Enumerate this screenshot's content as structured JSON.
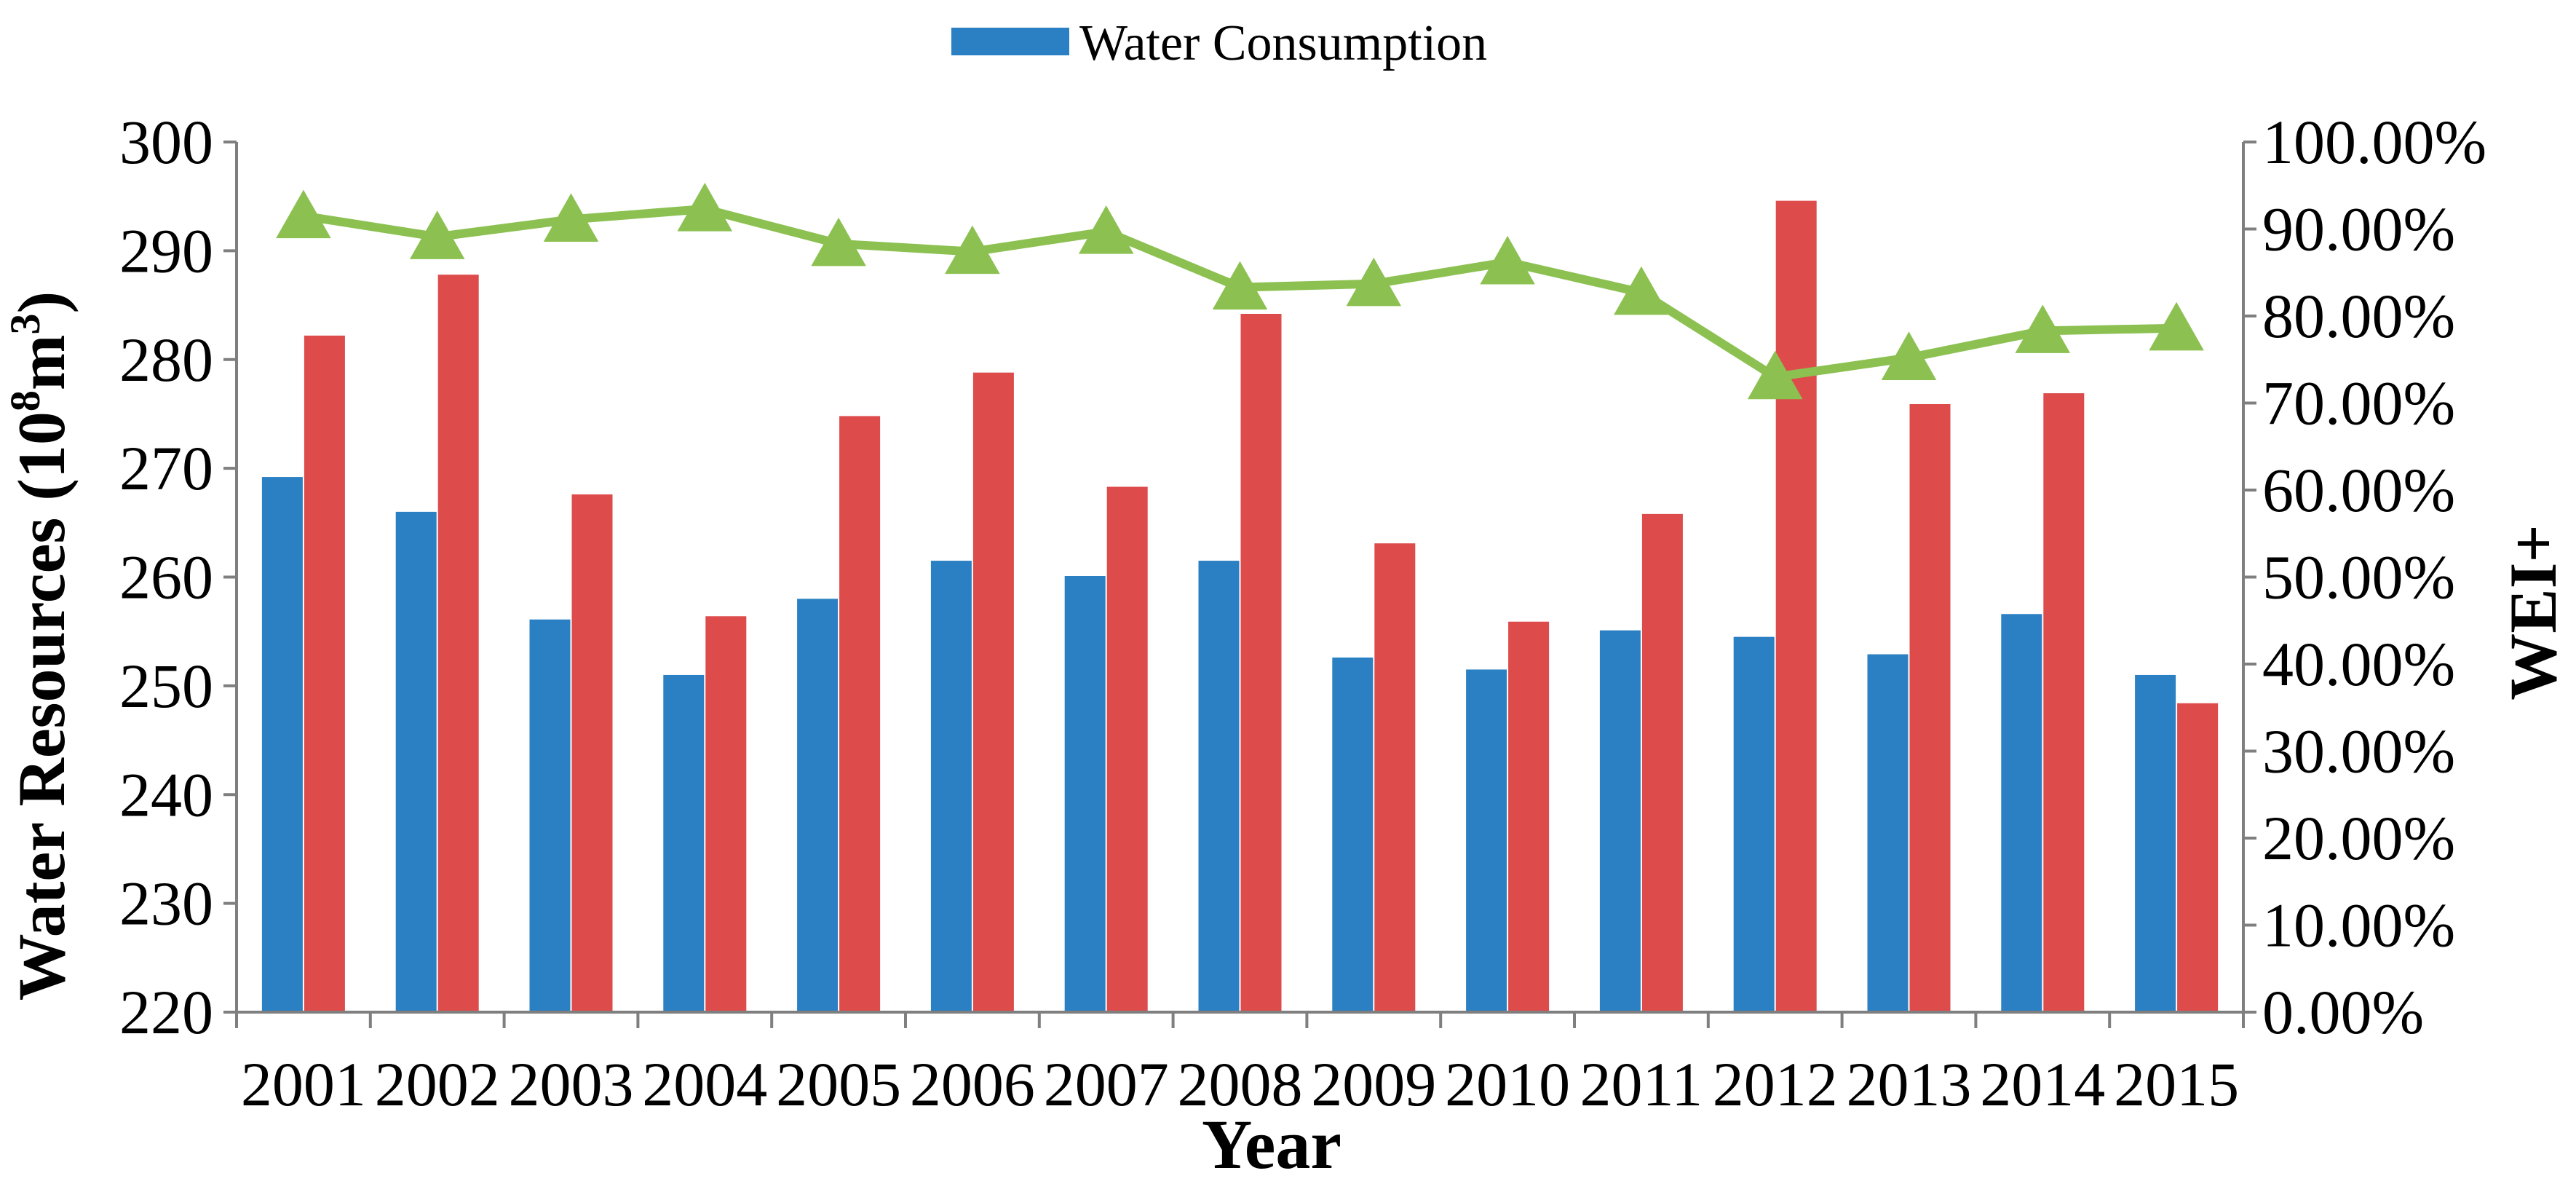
{
  "chart_data": {
    "type": "bar+line",
    "title": "",
    "legend": {
      "position": "top-center",
      "entries": [
        {
          "name": "Water Consumption",
          "color": "#2a80c2"
        }
      ]
    },
    "xlabel": "Year",
    "ylabel_left": {
      "main": "Water Resources (10",
      "sup1": "8",
      "mid": "m",
      "sup2": "3",
      "end": ")"
    },
    "ylabel_right": "WEI+",
    "categories": [
      "2001",
      "2002",
      "2003",
      "2004",
      "2005",
      "2006",
      "2007",
      "2008",
      "2009",
      "2010",
      "2011",
      "2012",
      "2013",
      "2014",
      "2015"
    ],
    "y_left": {
      "min": 220,
      "max": 300,
      "step": 10,
      "ticks": [
        "220",
        "230",
        "240",
        "250",
        "260",
        "270",
        "280",
        "290",
        "300"
      ]
    },
    "y_right": {
      "min": 0,
      "max": 1,
      "step": 0.1,
      "ticks": [
        "0.00%",
        "10.00%",
        "20.00%",
        "30.00%",
        "40.00%",
        "50.00%",
        "60.00%",
        "70.00%",
        "80.00%",
        "90.00%",
        "100.00%"
      ]
    },
    "series": [
      {
        "name": "Water Consumption",
        "type": "bar",
        "axis": "left",
        "color": "#2a80c2",
        "values": [
          269.2,
          266.0,
          256.1,
          251.0,
          258.0,
          261.5,
          260.1,
          261.5,
          252.6,
          251.5,
          255.1,
          254.5,
          252.9,
          256.6,
          251.0
        ]
      },
      {
        "name": "",
        "type": "bar",
        "axis": "left",
        "color": "#dd4b4b",
        "values": [
          282.2,
          287.8,
          267.6,
          256.4,
          274.8,
          278.8,
          268.3,
          284.2,
          263.1,
          255.9,
          265.8,
          294.6,
          275.9,
          276.9,
          248.4
        ]
      },
      {
        "name": "WEI+",
        "type": "line",
        "axis": "right",
        "color": "#8cc152",
        "marker": "triangle",
        "values": [
          0.915,
          0.891,
          0.911,
          0.923,
          0.883,
          0.874,
          0.897,
          0.833,
          0.837,
          0.862,
          0.827,
          0.73,
          0.752,
          0.783,
          0.786
        ]
      }
    ]
  }
}
